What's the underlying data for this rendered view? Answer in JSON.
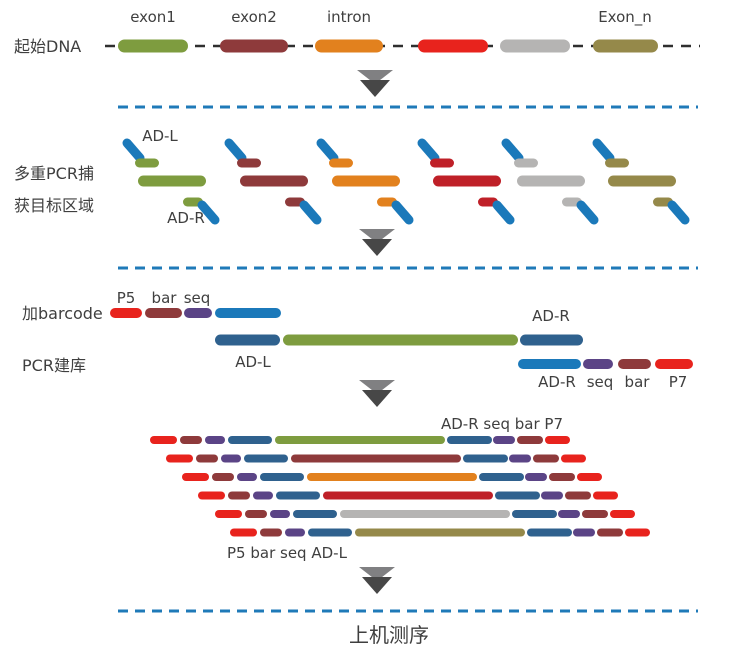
{
  "colors": {
    "green": "#7e9c3f",
    "maroon": "#8e3a3b",
    "orange": "#e2811e",
    "red": "#e8231d",
    "crimson": "#bf2028",
    "gray": "#b5b4b3",
    "olive": "#95894a",
    "blue": "#1b79ba",
    "navy": "#2f618e",
    "purple": "#5b4486",
    "dash_line": "#2f2f2f",
    "separator": "#1f7ab8",
    "arrow_light": "#808082",
    "arrow_dark": "#474747",
    "text": "#3f3f3f"
  },
  "labels": {
    "start_dna": "起始DNA",
    "exon1": "exon1",
    "exon2": "exon2",
    "intron": "intron",
    "exon_n": "Exon_n",
    "multiplex_line1": "多重PCR捕",
    "multiplex_line2": "获目标区域",
    "ad_l": "AD-L",
    "ad_r": "AD-R",
    "add_barcode": "加barcode",
    "pcr_library": "PCR建库",
    "p5": "P5",
    "bar": "bar",
    "seq": "seq",
    "p7": "P7",
    "library_top": "AD-R  seq  bar P7",
    "library_bottom": "P5  bar seq  AD-L",
    "sequencing": "上机测序"
  },
  "diagram": {
    "start_dna_segments": [
      {
        "name": "exon1",
        "color": "green"
      },
      {
        "name": "exon2",
        "color": "maroon"
      },
      {
        "name": "intron",
        "color": "orange"
      },
      {
        "name": "exon-red",
        "color": "red"
      },
      {
        "name": "segment-gray",
        "color": "gray"
      },
      {
        "name": "exon-n",
        "color": "olive"
      }
    ],
    "pcr_groups": [
      "green",
      "maroon",
      "orange",
      "crimson",
      "gray",
      "olive"
    ],
    "barcode_top_row": [
      "red",
      "maroon",
      "purple",
      "blue"
    ],
    "template_row": [
      "navy",
      "green",
      "navy"
    ],
    "primer_row": [
      "blue",
      "purple",
      "maroon",
      "red"
    ],
    "library_rows": [
      "green",
      "maroon",
      "orange",
      "crimson",
      "gray",
      "olive"
    ],
    "library_flank_left": [
      "red",
      "maroon",
      "purple",
      "navy"
    ],
    "library_flank_right": [
      "navy",
      "purple",
      "maroon",
      "red"
    ]
  }
}
